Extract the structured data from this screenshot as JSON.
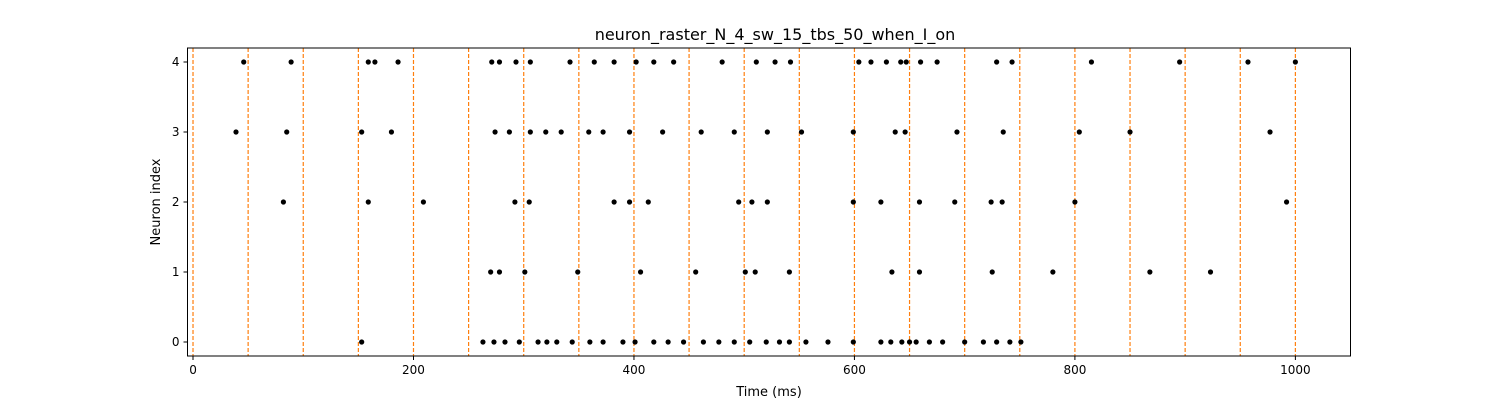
{
  "chart_data": {
    "type": "scatter",
    "title": "neuron_raster_N_4_sw_15_tbs_50_when_I_on",
    "xlabel": "Time (ms)",
    "ylabel": "Neuron index",
    "xlim": [
      -5,
      1050
    ],
    "ylim": [
      -0.2,
      4.2
    ],
    "xticks": [
      0,
      200,
      400,
      600,
      800,
      1000
    ],
    "yticks": [
      0,
      1,
      2,
      3,
      4
    ],
    "grid": false,
    "marker_color": "#000000",
    "line_color": "#ff7f0e",
    "vertical_lines": [
      0,
      50,
      100,
      150,
      200,
      250,
      300,
      350,
      400,
      450,
      500,
      550,
      600,
      650,
      700,
      750,
      800,
      850,
      900,
      950,
      1000
    ],
    "series": [
      {
        "neuron": 4,
        "x": [
          46,
          89,
          159,
          165,
          186,
          271,
          278,
          293,
          306,
          342,
          364,
          382,
          402,
          418,
          436,
          480,
          511,
          528,
          542,
          604,
          615,
          629,
          642,
          647,
          660,
          675,
          729,
          743,
          815,
          895,
          957,
          1000
        ]
      },
      {
        "neuron": 3,
        "x": [
          39,
          85,
          153,
          180,
          274,
          287,
          306,
          320,
          334,
          359,
          372,
          396,
          426,
          461,
          491,
          521,
          552,
          599,
          637,
          646,
          693,
          735,
          804,
          850,
          977
        ]
      },
      {
        "neuron": 2,
        "x": [
          82,
          159,
          209,
          292,
          305,
          382,
          396,
          413,
          495,
          507,
          521,
          599,
          624,
          659,
          691,
          724,
          734,
          800,
          992
        ]
      },
      {
        "neuron": 1,
        "x": [
          270,
          278,
          301,
          349,
          406,
          456,
          501,
          510,
          541,
          634,
          659,
          725,
          780,
          868,
          923
        ]
      },
      {
        "neuron": 0,
        "x": [
          153,
          263,
          273,
          283,
          296,
          313,
          321,
          330,
          344,
          360,
          372,
          390,
          401,
          418,
          431,
          445,
          463,
          477,
          491,
          505,
          520,
          532,
          541,
          556,
          576,
          599,
          624,
          633,
          643,
          650,
          656,
          668,
          680,
          700,
          717,
          729,
          741,
          751
        ]
      }
    ]
  }
}
